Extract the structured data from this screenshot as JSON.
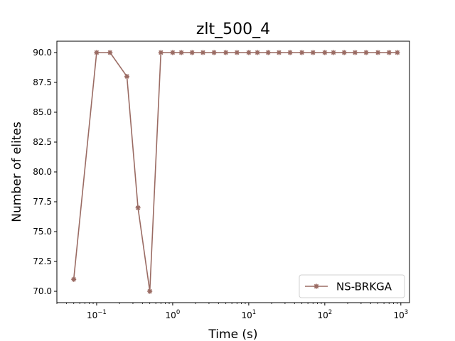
{
  "chart_data": {
    "type": "line",
    "title": "zlt_500_4",
    "xlabel": "Time (s)",
    "ylabel": "Number of elites",
    "xscale": "log",
    "xlim": [
      0.03,
      1300
    ],
    "ylim": [
      69.05,
      90.95
    ],
    "x_ticks": [
      {
        "value": 0.1,
        "base": "10",
        "exp": "−1"
      },
      {
        "value": 1,
        "base": "10",
        "exp": "0"
      },
      {
        "value": 10,
        "base": "10",
        "exp": "1"
      },
      {
        "value": 100,
        "base": "10",
        "exp": "2"
      },
      {
        "value": 1000,
        "base": "10",
        "exp": "3"
      }
    ],
    "y_ticks": [
      {
        "value": 70.0,
        "label": "70.0"
      },
      {
        "value": 72.5,
        "label": "72.5"
      },
      {
        "value": 75.0,
        "label": "75.0"
      },
      {
        "value": 77.5,
        "label": "77.5"
      },
      {
        "value": 80.0,
        "label": "80.0"
      },
      {
        "value": 82.5,
        "label": "82.5"
      },
      {
        "value": 85.0,
        "label": "85.0"
      },
      {
        "value": 87.5,
        "label": "87.5"
      },
      {
        "value": 90.0,
        "label": "90.0"
      }
    ],
    "grid": false,
    "legend_position": "bottom-right",
    "series": [
      {
        "name": "NS-BRKGA",
        "color": "#9a6b63",
        "marker": "x-star",
        "x": [
          0.05,
          0.1,
          0.15,
          0.25,
          0.35,
          0.5,
          0.7,
          1.0,
          1.3,
          1.8,
          2.5,
          3.5,
          5,
          7,
          10,
          13,
          18,
          25,
          35,
          50,
          70,
          100,
          130,
          180,
          250,
          350,
          500,
          700,
          900
        ],
        "y": [
          71,
          90,
          90,
          88,
          77,
          70,
          90,
          90,
          90,
          90,
          90,
          90,
          90,
          90,
          90,
          90,
          90,
          90,
          90,
          90,
          90,
          90,
          90,
          90,
          90,
          90,
          90,
          90,
          90
        ]
      }
    ]
  }
}
